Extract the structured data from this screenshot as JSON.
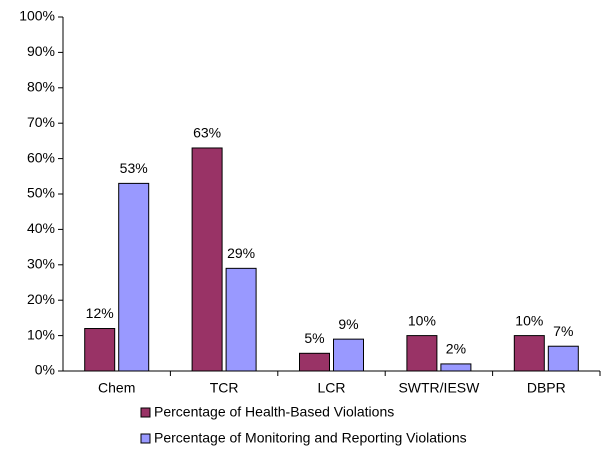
{
  "chart_data": {
    "type": "bar",
    "categories": [
      "Chem",
      "TCR",
      "LCR",
      "SWTR/IESW",
      "DBPR"
    ],
    "series": [
      {
        "name": "Percentage of Health-Based Violations",
        "color": "#993366",
        "values": [
          12,
          63,
          5,
          10,
          10
        ],
        "value_labels": [
          "12%",
          "63%",
          "5%",
          "10%",
          "10%"
        ]
      },
      {
        "name": "Percentage of Monitoring and Reporting Violations",
        "color": "#9999ff",
        "values": [
          53,
          29,
          9,
          2,
          7
        ],
        "value_labels": [
          "53%",
          "29%",
          "9%",
          "2%",
          "7%"
        ]
      }
    ],
    "ylim": [
      0,
      100
    ],
    "yticks": [
      {
        "value": 0,
        "label": "0%"
      },
      {
        "value": 10,
        "label": "10%"
      },
      {
        "value": 20,
        "label": "20%"
      },
      {
        "value": 30,
        "label": "30%"
      },
      {
        "value": 40,
        "label": "40%"
      },
      {
        "value": 50,
        "label": "50%"
      },
      {
        "value": 60,
        "label": "60%"
      },
      {
        "value": 70,
        "label": "70%"
      },
      {
        "value": 80,
        "label": "80%"
      },
      {
        "value": 90,
        "label": "90%"
      },
      {
        "value": 100,
        "label": "100%"
      }
    ],
    "grid": false,
    "legend": "bottom"
  }
}
